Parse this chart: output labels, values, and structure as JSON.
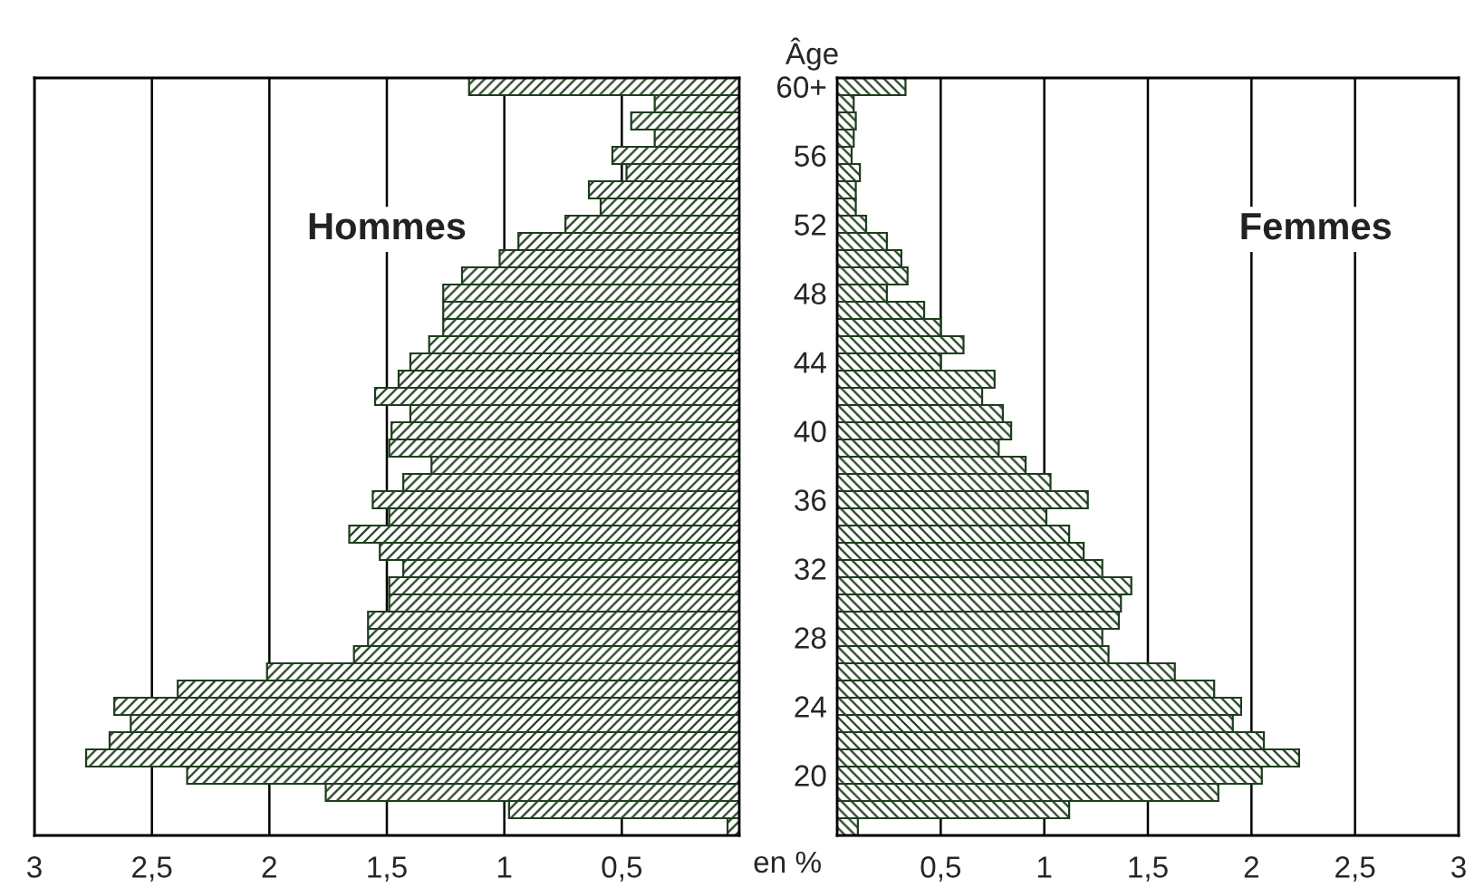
{
  "chart_data": [
    {
      "type": "bar",
      "orientation": "horizontal",
      "annotations": [
        "Hommes"
      ],
      "categories": [
        null,
        null,
        null,
        null,
        null,
        null,
        null,
        null,
        null,
        null,
        null,
        null,
        null,
        null,
        null,
        null,
        null,
        null,
        null,
        null,
        null,
        null,
        null,
        null,
        null,
        null,
        null,
        null,
        null,
        null,
        null,
        null,
        null,
        null,
        null,
        null,
        null,
        null,
        null,
        null,
        null,
        null,
        null,
        null
      ],
      "series": [
        {
          "color": "#1e3d1e",
          "values": [
            1.15,
            0.36,
            0.46,
            0.36,
            0.54,
            0.48,
            0.64,
            0.59,
            0.74,
            0.94,
            1.02,
            1.18,
            1.26,
            1.26,
            1.26,
            1.32,
            1.4,
            1.45,
            1.55,
            1.4,
            1.48,
            1.49,
            1.31,
            1.43,
            1.56,
            1.49,
            1.66,
            1.53,
            1.43,
            1.49,
            1.49,
            1.58,
            1.58,
            1.64,
            2.01,
            2.39,
            2.66,
            2.59,
            2.68,
            2.78,
            2.35,
            1.76,
            0.98,
            0.05
          ]
        }
      ],
      "xlim": [
        3,
        0
      ],
      "xticks": [
        3,
        {
          "value": 2.5,
          "label": "2,5"
        },
        2,
        {
          "value": 1.5,
          "label": "1,5"
        },
        1,
        {
          "value": 0.5,
          "label": "0,5"
        },
        {
          "value": 0,
          "label": null
        }
      ],
      "grid": "x"
    },
    {
      "type": "bar",
      "orientation": "horizontal",
      "annotations": [
        "Femmes"
      ],
      "ylabel": "Âge",
      "xlabel": "en %",
      "categories": [
        "60+",
        null,
        null,
        null,
        "56",
        null,
        null,
        null,
        "52",
        null,
        null,
        null,
        "48",
        null,
        null,
        null,
        "44",
        null,
        null,
        null,
        "40",
        null,
        null,
        null,
        "36",
        null,
        null,
        null,
        "32",
        null,
        null,
        null,
        "28",
        null,
        null,
        null,
        "24",
        null,
        null,
        null,
        "20",
        null,
        null,
        null
      ],
      "series": [
        {
          "color": "#1e3d1e",
          "values": [
            0.33,
            0.08,
            0.09,
            0.08,
            0.07,
            0.11,
            0.09,
            0.09,
            0.14,
            0.24,
            0.31,
            0.34,
            0.24,
            0.42,
            0.5,
            0.61,
            0.5,
            0.76,
            0.7,
            0.8,
            0.84,
            0.78,
            0.91,
            1.03,
            1.21,
            1.01,
            1.12,
            1.19,
            1.28,
            1.42,
            1.37,
            1.36,
            1.28,
            1.31,
            1.63,
            1.82,
            1.95,
            1.91,
            2.06,
            2.23,
            2.05,
            1.84,
            1.12,
            0.1
          ]
        }
      ],
      "xlim": [
        0,
        3
      ],
      "xticks": [
        {
          "value": 0,
          "label": null
        },
        {
          "value": 0.5,
          "label": "0,5"
        },
        1,
        {
          "value": 1.5,
          "label": "1,5"
        },
        2,
        {
          "value": 2.5,
          "label": "2,5"
        },
        3
      ],
      "grid": "x"
    }
  ]
}
